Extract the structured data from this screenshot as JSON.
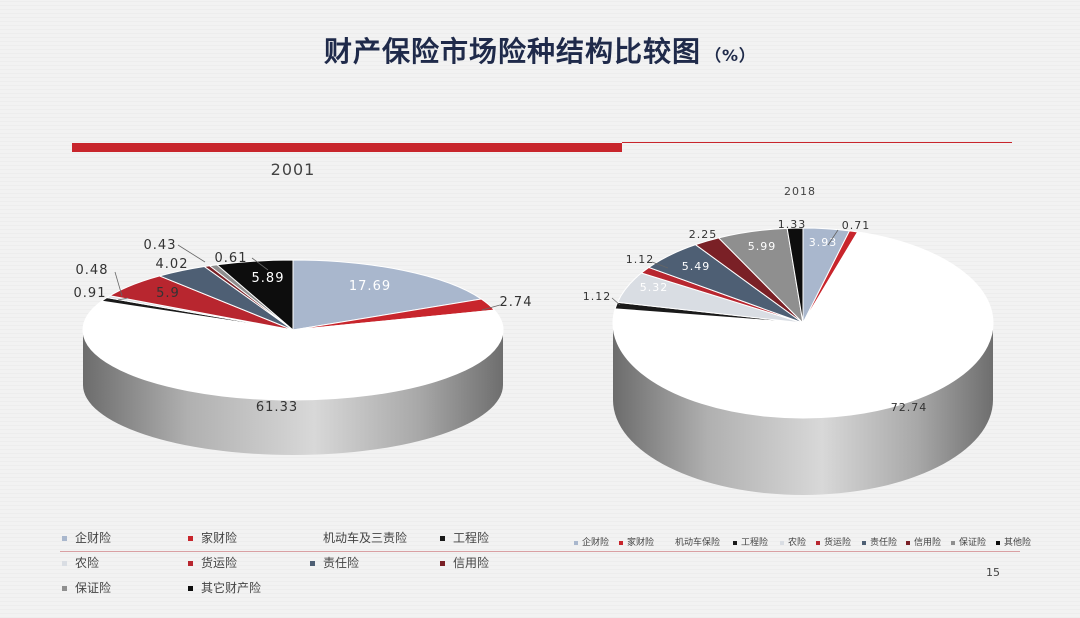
{
  "title": "财产保险市场险种结构比较图",
  "title_unit": "（%）",
  "page_number": "15",
  "colors": {
    "企财险": "#a9b7cd",
    "家财险": "#c8252c",
    "机动车": "#ffffff",
    "工程险": "#1a1a1a",
    "农险": "#d9dde3",
    "货运险": "#b8262f",
    "责任险": "#4e5f74",
    "信用险": "#7a2026",
    "保证险": "#8f8f8f",
    "其它": "#0d0d0d"
  },
  "chart_data": [
    {
      "type": "pie",
      "title": "2001",
      "legend": [
        "企财险",
        "家财险",
        "机动车及三责险",
        "工程险",
        "农险",
        "货运险",
        "责任险",
        "信用险",
        "保证险",
        "其它财产险"
      ],
      "slices": [
        {
          "key": "企财险",
          "value": 17.69,
          "label": "17.69"
        },
        {
          "key": "家财险",
          "value": 2.74,
          "label": "2.74"
        },
        {
          "key": "机动车",
          "value": 61.33,
          "label": "61.33"
        },
        {
          "key": "工程险",
          "value": 0.91,
          "label": "0.91"
        },
        {
          "key": "农险",
          "value": 0.48,
          "label": "0.48"
        },
        {
          "key": "货运险",
          "value": 5.9,
          "label": "5.9"
        },
        {
          "key": "责任险",
          "value": 4.02,
          "label": "4.02"
        },
        {
          "key": "信用险",
          "value": 0.43,
          "label": "0.43"
        },
        {
          "key": "保证险",
          "value": 0.61,
          "label": "0.61"
        },
        {
          "key": "其它",
          "value": 5.89,
          "label": "5.89"
        }
      ]
    },
    {
      "type": "pie",
      "title": "2018",
      "legend": [
        "企财险",
        "家财险",
        "机动车保险",
        "工程险",
        "农险",
        "货运险",
        "责任险",
        "信用险",
        "保证险",
        "其他险"
      ],
      "slices": [
        {
          "key": "企财险",
          "value": 3.93,
          "label": "3.93"
        },
        {
          "key": "家财险",
          "value": 0.71,
          "label": "0.71"
        },
        {
          "key": "机动车",
          "value": 72.74,
          "label": "72.74"
        },
        {
          "key": "工程险",
          "value": 1.12,
          "label": "1.12"
        },
        {
          "key": "农险",
          "value": 5.32,
          "label": "5.32"
        },
        {
          "key": "货运险",
          "value": 1.12,
          "label": "1.12"
        },
        {
          "key": "责任险",
          "value": 5.49,
          "label": "5.49"
        },
        {
          "key": "信用险",
          "value": 2.25,
          "label": "2.25"
        },
        {
          "key": "保证险",
          "value": 5.99,
          "label": "5.99"
        },
        {
          "key": "其它",
          "value": 1.33,
          "label": "1.33"
        }
      ]
    }
  ]
}
